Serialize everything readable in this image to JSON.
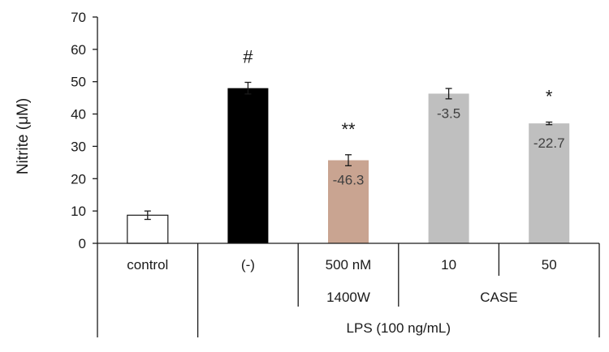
{
  "chart_data": {
    "type": "bar",
    "ylabel": "Nitrite (μM)",
    "xlabel": "",
    "title": "",
    "ylim": [
      0,
      70
    ],
    "yticks": [
      0,
      10,
      20,
      30,
      40,
      50,
      60,
      70
    ],
    "grid": false,
    "legend": "none",
    "categories": [
      "control",
      "(-)",
      "500 nM",
      "10",
      "50"
    ],
    "values": [
      8.7,
      48.0,
      25.7,
      46.3,
      37.1
    ],
    "errors": [
      1.3,
      1.8,
      1.7,
      1.6,
      0.4
    ],
    "colors": [
      "#ffffff",
      "#000000",
      "#c9a491",
      "#bfbfbf",
      "#bfbfbf"
    ],
    "data_labels": [
      "",
      "",
      "-46.3",
      "-3.5",
      "-22.7"
    ],
    "significance": [
      "",
      "#",
      "**",
      "",
      "*"
    ],
    "group_labels": [
      {
        "label": "1400W",
        "spans": [
          2
        ]
      },
      {
        "label": "CASE",
        "spans": [
          3,
          4
        ]
      }
    ],
    "outer_group": {
      "label": "LPS (100 ng/mL)",
      "spans": [
        1,
        2,
        3,
        4
      ]
    }
  }
}
